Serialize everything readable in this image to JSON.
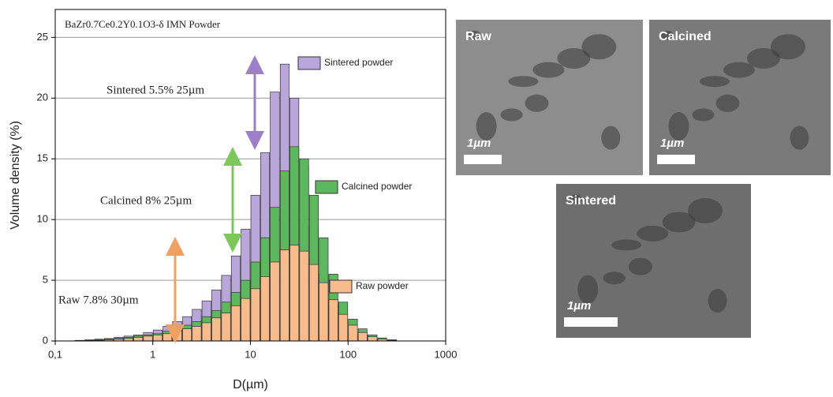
{
  "chart_data": {
    "type": "histogram",
    "title": "BaZr0.7Ce0.2Y0.1O3-δ IMN Powder",
    "xlabel": "D(µm)",
    "ylabel": "Volume density (%)",
    "xscale": "log",
    "grid": true,
    "xlim": [
      0.1,
      1000
    ],
    "ylim": [
      0,
      27.3
    ],
    "xticks": [
      {
        "value": 0.1,
        "label": "0,1"
      },
      1,
      10,
      100,
      1000
    ],
    "yticks": [
      0,
      5,
      10,
      15,
      20,
      25
    ],
    "bins": [
      0.1,
      0.126,
      0.158,
      0.2,
      0.251,
      0.316,
      0.398,
      0.501,
      0.631,
      0.794,
      1,
      1.26,
      1.58,
      2,
      2.51,
      3.16,
      3.98,
      5.01,
      6.31,
      7.94,
      10,
      12.6,
      15.8,
      20,
      25.1,
      31.6,
      39.8,
      50.1,
      63.1,
      79.4,
      100,
      126,
      158,
      200,
      251,
      316,
      398,
      501,
      631,
      794,
      1000
    ],
    "series": [
      {
        "name": "Sintered powder",
        "color": "#b9a6db",
        "values": [
          0,
          0,
          0.05,
          0.1,
          0.15,
          0.2,
          0.3,
          0.4,
          0.5,
          0.7,
          0.9,
          1.2,
          1.6,
          2.0,
          2.6,
          3.3,
          4.2,
          5.4,
          7.0,
          9.2,
          12.0,
          15.5,
          20.5,
          22.8,
          20.0,
          14.5,
          9.5,
          5.5,
          3.0,
          1.6,
          0.8,
          0.4,
          0.2,
          0.1,
          0,
          0,
          0,
          0,
          0,
          0
        ]
      },
      {
        "name": "Calcined powder",
        "color": "#5cb85c",
        "values": [
          0,
          0,
          0,
          0.05,
          0.1,
          0.15,
          0.2,
          0.3,
          0.4,
          0.5,
          0.6,
          0.8,
          1.0,
          1.3,
          1.6,
          2.0,
          2.5,
          3.2,
          4.0,
          5.0,
          6.5,
          8.5,
          11.0,
          14.0,
          16.0,
          15.0,
          12.0,
          8.5,
          5.5,
          3.2,
          1.8,
          1.0,
          0.5,
          0.25,
          0.1,
          0,
          0,
          0,
          0,
          0
        ]
      },
      {
        "name": "Raw powder",
        "color": "#f7bb8c",
        "values": [
          0,
          0,
          0,
          0,
          0.05,
          0.1,
          0.15,
          0.2,
          0.3,
          0.4,
          0.5,
          0.6,
          0.8,
          1.0,
          1.2,
          1.5,
          1.9,
          2.3,
          2.9,
          3.5,
          4.3,
          5.3,
          6.5,
          7.5,
          7.9,
          7.4,
          6.3,
          4.8,
          3.4,
          2.2,
          1.3,
          0.7,
          0.35,
          0.15,
          0.05,
          0,
          0,
          0,
          0,
          0
        ]
      }
    ],
    "annotations": [
      "Sintered 5.5% 25µm",
      "Calcined 8% 25µm",
      "Raw 7.8% 30µm"
    ]
  },
  "images": [
    {
      "label": "Raw",
      "scale": "1µm"
    },
    {
      "label": "Calcined",
      "scale": "1µm"
    },
    {
      "label": "Sintered",
      "scale": "1µm"
    }
  ]
}
